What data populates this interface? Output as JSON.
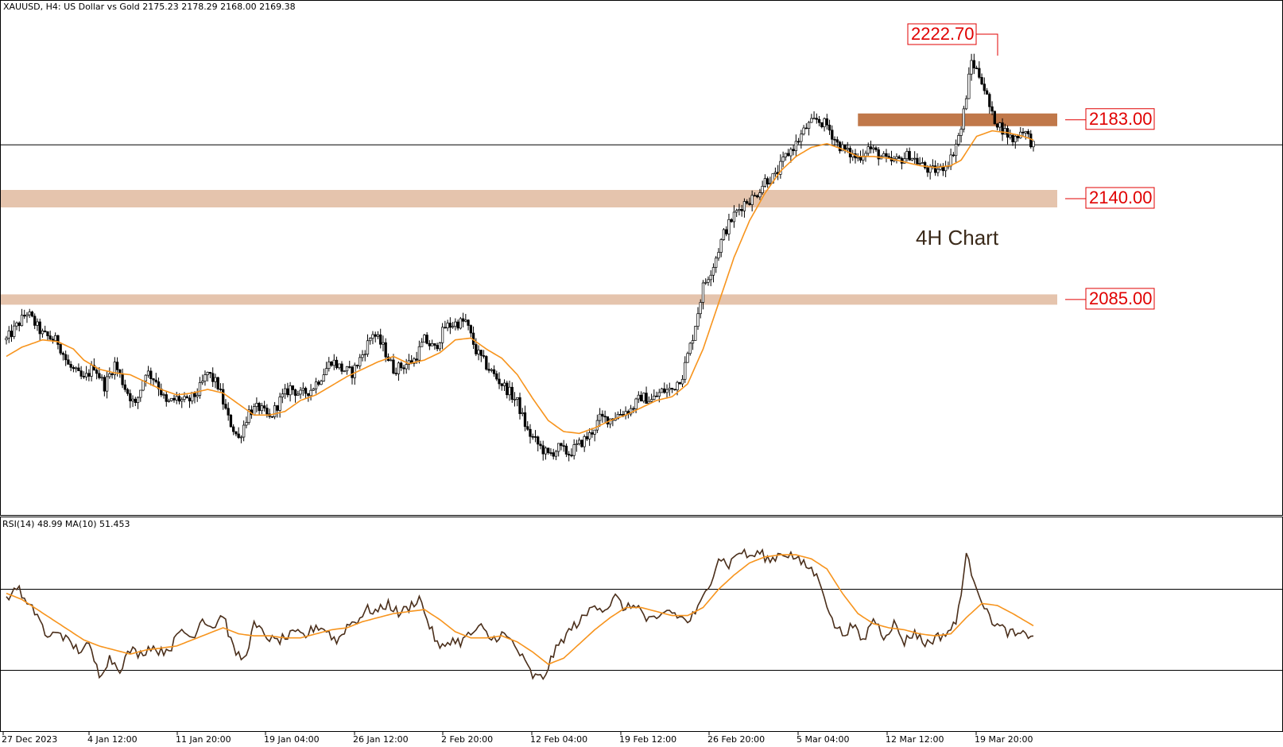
{
  "chart_data": {
    "type": "candlestick",
    "symbol_header": "XAUUSD, H4:  US Dollar vs Gold  2175.23 2178.29 2168.00 2169.38",
    "annotation": "4H Chart",
    "x_ticks": [
      "27 Dec 2023",
      "4 Jan 12:00",
      "11 Jan 20:00",
      "19 Jan 04:00",
      "26 Jan 12:00",
      "2 Feb 20:00",
      "12 Feb 04:00",
      "19 Feb 12:00",
      "26 Feb 20:00",
      "5 Mar 04:00",
      "12 Mar 12:00",
      "19 Mar 20:00"
    ],
    "levels": [
      {
        "label": "2222.70",
        "value": 2222.7,
        "type": "line"
      },
      {
        "label": "2183.00",
        "value": 2183.0,
        "type": "zone",
        "color": "#c0784a"
      },
      {
        "label": "2140.00",
        "value": 2140.0,
        "type": "zone",
        "color": "#e5c4ad"
      },
      {
        "label": "2085.00",
        "value": 2085.0,
        "type": "zone",
        "color": "#e5c4ad"
      }
    ],
    "current_price": 2169.38,
    "price_ylim": [
      1984,
      2231
    ],
    "price_path": [
      [
        0,
        2063
      ],
      [
        8,
        2078
      ],
      [
        14,
        2066
      ],
      [
        20,
        2062
      ],
      [
        24,
        2049
      ],
      [
        30,
        2041
      ],
      [
        34,
        2049
      ],
      [
        38,
        2038
      ],
      [
        42,
        2050
      ],
      [
        46,
        2037
      ],
      [
        50,
        2027
      ],
      [
        54,
        2046
      ],
      [
        58,
        2041
      ],
      [
        62,
        2028
      ],
      [
        66,
        2031
      ],
      [
        70,
        2029
      ],
      [
        74,
        2034
      ],
      [
        78,
        2045
      ],
      [
        82,
        2038
      ],
      [
        86,
        2020
      ],
      [
        90,
        2009
      ],
      [
        94,
        2024
      ],
      [
        98,
        2026
      ],
      [
        102,
        2020
      ],
      [
        106,
        2030
      ],
      [
        110,
        2037
      ],
      [
        114,
        2033
      ],
      [
        118,
        2036
      ],
      [
        122,
        2043
      ],
      [
        126,
        2052
      ],
      [
        130,
        2047
      ],
      [
        134,
        2045
      ],
      [
        138,
        2055
      ],
      [
        142,
        2067
      ],
      [
        146,
        2059
      ],
      [
        150,
        2047
      ],
      [
        154,
        2049
      ],
      [
        158,
        2052
      ],
      [
        162,
        2063
      ],
      [
        166,
        2058
      ],
      [
        170,
        2070
      ],
      [
        174,
        2072
      ],
      [
        178,
        2073
      ],
      [
        182,
        2057
      ],
      [
        186,
        2049
      ],
      [
        190,
        2042
      ],
      [
        194,
        2036
      ],
      [
        198,
        2029
      ],
      [
        202,
        2013
      ],
      [
        206,
        2006
      ],
      [
        210,
        2000
      ],
      [
        214,
        2004
      ],
      [
        218,
        2001
      ],
      [
        222,
        2006
      ],
      [
        226,
        2011
      ],
      [
        230,
        2020
      ],
      [
        234,
        2020
      ],
      [
        238,
        2023
      ],
      [
        242,
        2025
      ],
      [
        246,
        2032
      ],
      [
        250,
        2030
      ],
      [
        254,
        2035
      ],
      [
        258,
        2036
      ],
      [
        262,
        2044
      ],
      [
        266,
        2065
      ],
      [
        270,
        2092
      ],
      [
        274,
        2104
      ],
      [
        278,
        2121
      ],
      [
        282,
        2131
      ],
      [
        286,
        2138
      ],
      [
        290,
        2141
      ],
      [
        294,
        2150
      ],
      [
        298,
        2152
      ],
      [
        302,
        2163
      ],
      [
        306,
        2170
      ],
      [
        310,
        2179
      ],
      [
        314,
        2183
      ],
      [
        318,
        2180
      ],
      [
        322,
        2170
      ],
      [
        326,
        2165
      ],
      [
        330,
        2162
      ],
      [
        334,
        2168
      ],
      [
        338,
        2164
      ],
      [
        342,
        2160
      ],
      [
        346,
        2161
      ],
      [
        350,
        2164
      ],
      [
        354,
        2159
      ],
      [
        358,
        2155
      ],
      [
        362,
        2156
      ],
      [
        366,
        2162
      ],
      [
        370,
        2178
      ],
      [
        374,
        2215
      ],
      [
        378,
        2205
      ],
      [
        382,
        2185
      ],
      [
        386,
        2178
      ],
      [
        390,
        2172
      ],
      [
        394,
        2178
      ],
      [
        398,
        2169
      ]
    ],
    "ma_path": [
      [
        0,
        2054
      ],
      [
        6,
        2059
      ],
      [
        14,
        2063
      ],
      [
        20,
        2062
      ],
      [
        26,
        2058
      ],
      [
        30,
        2052
      ],
      [
        36,
        2047
      ],
      [
        42,
        2045
      ],
      [
        48,
        2044
      ],
      [
        54,
        2040
      ],
      [
        60,
        2036
      ],
      [
        66,
        2033
      ],
      [
        72,
        2034
      ],
      [
        78,
        2036
      ],
      [
        84,
        2034
      ],
      [
        90,
        2028
      ],
      [
        96,
        2022
      ],
      [
        102,
        2022
      ],
      [
        108,
        2024
      ],
      [
        114,
        2030
      ],
      [
        120,
        2033
      ],
      [
        126,
        2038
      ],
      [
        132,
        2043
      ],
      [
        138,
        2047
      ],
      [
        144,
        2051
      ],
      [
        150,
        2054
      ],
      [
        156,
        2050
      ],
      [
        162,
        2052
      ],
      [
        168,
        2056
      ],
      [
        174,
        2063
      ],
      [
        180,
        2064
      ],
      [
        186,
        2058
      ],
      [
        192,
        2053
      ],
      [
        198,
        2044
      ],
      [
        204,
        2031
      ],
      [
        210,
        2019
      ],
      [
        216,
        2013
      ],
      [
        222,
        2012
      ],
      [
        228,
        2015
      ],
      [
        234,
        2019
      ],
      [
        240,
        2022
      ],
      [
        246,
        2026
      ],
      [
        252,
        2030
      ],
      [
        258,
        2032
      ],
      [
        264,
        2039
      ],
      [
        270,
        2058
      ],
      [
        276,
        2083
      ],
      [
        282,
        2108
      ],
      [
        288,
        2128
      ],
      [
        294,
        2143
      ],
      [
        300,
        2155
      ],
      [
        306,
        2163
      ],
      [
        312,
        2168
      ],
      [
        318,
        2170
      ],
      [
        324,
        2167
      ],
      [
        330,
        2163
      ],
      [
        336,
        2163
      ],
      [
        342,
        2162
      ],
      [
        348,
        2160
      ],
      [
        354,
        2158
      ],
      [
        360,
        2157
      ],
      [
        366,
        2158
      ],
      [
        370,
        2161
      ],
      [
        376,
        2174
      ],
      [
        382,
        2177
      ],
      [
        388,
        2176
      ],
      [
        394,
        2174
      ],
      [
        398,
        2172
      ]
    ],
    "indicator": {
      "header": "RSI(14) 48.99 MA(10) 51.453",
      "ylim": [
        0,
        100
      ],
      "levels": [
        70,
        30
      ],
      "rsi_path": [
        [
          0,
          64
        ],
        [
          4,
          72
        ],
        [
          8,
          62
        ],
        [
          12,
          58
        ],
        [
          16,
          45
        ],
        [
          20,
          50
        ],
        [
          24,
          44
        ],
        [
          28,
          40
        ],
        [
          32,
          42
        ],
        [
          36,
          28
        ],
        [
          40,
          36
        ],
        [
          44,
          31
        ],
        [
          48,
          40
        ],
        [
          52,
          38
        ],
        [
          56,
          42
        ],
        [
          60,
          39
        ],
        [
          64,
          42
        ],
        [
          68,
          50
        ],
        [
          72,
          46
        ],
        [
          76,
          56
        ],
        [
          80,
          51
        ],
        [
          84,
          58
        ],
        [
          88,
          40
        ],
        [
          92,
          35
        ],
        [
          96,
          52
        ],
        [
          100,
          48
        ],
        [
          104,
          44
        ],
        [
          108,
          46
        ],
        [
          112,
          48
        ],
        [
          116,
          47
        ],
        [
          120,
          52
        ],
        [
          124,
          50
        ],
        [
          128,
          44
        ],
        [
          132,
          52
        ],
        [
          136,
          55
        ],
        [
          140,
          60
        ],
        [
          144,
          59
        ],
        [
          148,
          63
        ],
        [
          152,
          58
        ],
        [
          156,
          61
        ],
        [
          160,
          66
        ],
        [
          164,
          52
        ],
        [
          168,
          40
        ],
        [
          172,
          45
        ],
        [
          176,
          44
        ],
        [
          180,
          48
        ],
        [
          184,
          51
        ],
        [
          188,
          45
        ],
        [
          192,
          48
        ],
        [
          196,
          44
        ],
        [
          200,
          36
        ],
        [
          204,
          27
        ],
        [
          208,
          26
        ],
        [
          212,
          38
        ],
        [
          216,
          46
        ],
        [
          220,
          52
        ],
        [
          224,
          56
        ],
        [
          228,
          63
        ],
        [
          232,
          60
        ],
        [
          236,
          66
        ],
        [
          240,
          60
        ],
        [
          244,
          63
        ],
        [
          248,
          55
        ],
        [
          252,
          54
        ],
        [
          256,
          60
        ],
        [
          260,
          57
        ],
        [
          264,
          54
        ],
        [
          268,
          60
        ],
        [
          272,
          71
        ],
        [
          276,
          86
        ],
        [
          280,
          82
        ],
        [
          284,
          89
        ],
        [
          288,
          86
        ],
        [
          292,
          88
        ],
        [
          296,
          84
        ],
        [
          300,
          88
        ],
        [
          304,
          87
        ],
        [
          308,
          83
        ],
        [
          312,
          80
        ],
        [
          316,
          72
        ],
        [
          320,
          54
        ],
        [
          324,
          48
        ],
        [
          328,
          52
        ],
        [
          332,
          44
        ],
        [
          336,
          56
        ],
        [
          340,
          47
        ],
        [
          344,
          53
        ],
        [
          348,
          44
        ],
        [
          352,
          49
        ],
        [
          356,
          43
        ],
        [
          360,
          46
        ],
        [
          364,
          48
        ],
        [
          368,
          53
        ],
        [
          372,
          86
        ],
        [
          376,
          72
        ],
        [
          380,
          58
        ],
        [
          384,
          52
        ],
        [
          388,
          49
        ],
        [
          392,
          47
        ],
        [
          398,
          48
        ]
      ],
      "ma_path": [
        [
          0,
          68
        ],
        [
          6,
          65
        ],
        [
          12,
          60
        ],
        [
          18,
          55
        ],
        [
          24,
          50
        ],
        [
          30,
          45
        ],
        [
          36,
          42
        ],
        [
          42,
          40
        ],
        [
          48,
          38
        ],
        [
          54,
          40
        ],
        [
          60,
          41
        ],
        [
          66,
          42
        ],
        [
          72,
          45
        ],
        [
          78,
          48
        ],
        [
          84,
          51
        ],
        [
          90,
          48
        ],
        [
          96,
          47
        ],
        [
          102,
          47
        ],
        [
          108,
          46
        ],
        [
          114,
          46
        ],
        [
          120,
          48
        ],
        [
          126,
          50
        ],
        [
          132,
          51
        ],
        [
          138,
          54
        ],
        [
          144,
          56
        ],
        [
          150,
          58
        ],
        [
          156,
          59
        ],
        [
          162,
          60
        ],
        [
          168,
          55
        ],
        [
          174,
          49
        ],
        [
          180,
          46
        ],
        [
          186,
          46
        ],
        [
          192,
          47
        ],
        [
          198,
          44
        ],
        [
          204,
          39
        ],
        [
          210,
          33
        ],
        [
          216,
          36
        ],
        [
          222,
          43
        ],
        [
          228,
          50
        ],
        [
          234,
          56
        ],
        [
          240,
          61
        ],
        [
          246,
          61
        ],
        [
          252,
          59
        ],
        [
          258,
          57
        ],
        [
          264,
          57
        ],
        [
          270,
          61
        ],
        [
          276,
          70
        ],
        [
          282,
          77
        ],
        [
          288,
          83
        ],
        [
          294,
          86
        ],
        [
          300,
          87
        ],
        [
          306,
          87
        ],
        [
          312,
          85
        ],
        [
          318,
          80
        ],
        [
          324,
          68
        ],
        [
          330,
          58
        ],
        [
          336,
          53
        ],
        [
          342,
          51
        ],
        [
          348,
          50
        ],
        [
          354,
          48
        ],
        [
          360,
          47
        ],
        [
          366,
          48
        ],
        [
          372,
          56
        ],
        [
          378,
          63
        ],
        [
          384,
          62
        ],
        [
          390,
          58
        ],
        [
          398,
          52
        ]
      ]
    }
  }
}
